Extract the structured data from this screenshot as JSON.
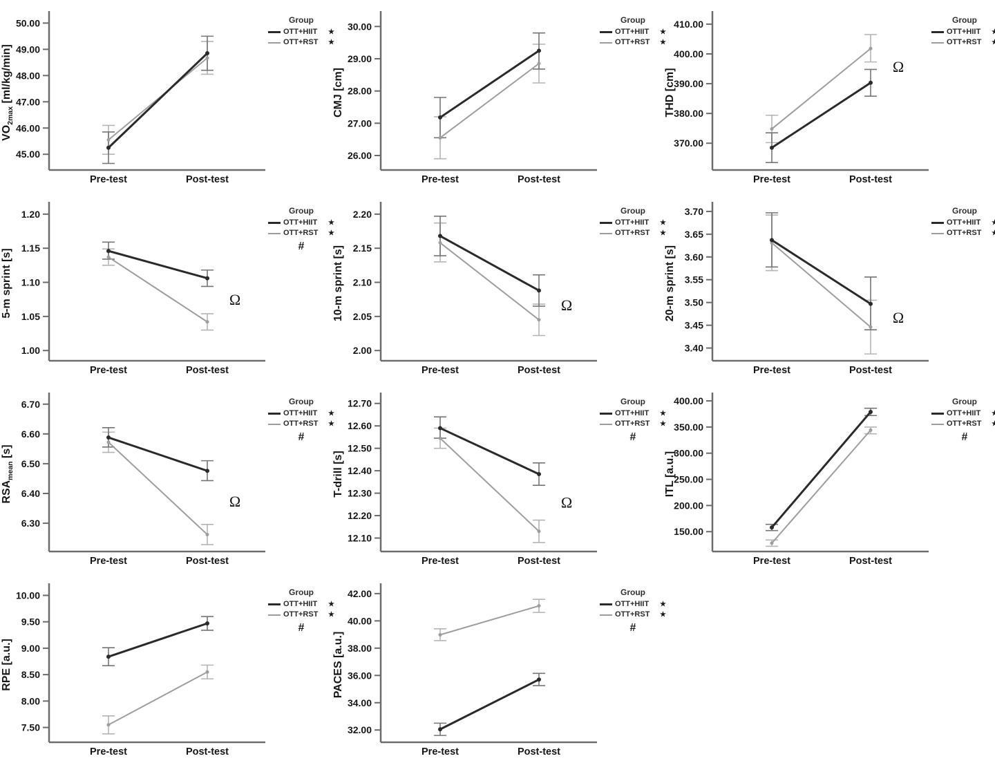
{
  "figure": {
    "background": "#ffffff",
    "rows": 4,
    "cols": 3
  },
  "colors": {
    "hiit_line": "#2a2a2a",
    "rst_line": "#9d9d9d",
    "hiit_error": "#747474",
    "rst_error": "#b4b4b4",
    "axis": "#6b6b6b",
    "text": "#161616"
  },
  "legend": {
    "title": "Group",
    "star": "★",
    "hash": "#"
  },
  "annotations": {
    "omega": "Ω"
  },
  "categories": [
    "Pre-test",
    "Post-test"
  ],
  "chart_data": [
    {
      "id": "vo2max",
      "type": "line",
      "ylabel": "VO2max [ml/kg/min]",
      "ylabel_parts": [
        {
          "text": "VO"
        },
        {
          "text": "2max",
          "sub": true
        },
        {
          "text": " [ml/kg/min]"
        }
      ],
      "categories": [
        "Pre-test",
        "Post-test"
      ],
      "yticks": [
        45,
        46,
        47,
        48,
        49,
        50
      ],
      "ytick_labels": [
        "45.00",
        "46.00",
        "47.00",
        "48.00",
        "49.00",
        "50.00"
      ],
      "ylim": [
        44.4,
        50.3
      ],
      "series": [
        {
          "name": "OTT+HIIT",
          "values": [
            45.25,
            48.85
          ],
          "err_low": [
            44.65,
            48.2
          ],
          "err_high": [
            45.85,
            49.5
          ],
          "significant": true
        },
        {
          "name": "OTT+RST",
          "values": [
            45.55,
            48.67
          ],
          "err_low": [
            45.0,
            48.05
          ],
          "err_high": [
            46.1,
            49.3
          ],
          "significant": true
        }
      ],
      "between_group_hash": false,
      "omega_y": null
    },
    {
      "id": "cmj",
      "type": "line",
      "ylabel": "CMJ [cm]",
      "ylabel_parts": [
        {
          "text": "CMJ [cm]"
        }
      ],
      "categories": [
        "Pre-test",
        "Post-test"
      ],
      "yticks": [
        26,
        27,
        28,
        29,
        30
      ],
      "ytick_labels": [
        "26.00",
        "27.00",
        "28.00",
        "29.00",
        "30.00"
      ],
      "ylim": [
        25.55,
        30.35
      ],
      "series": [
        {
          "name": "OTT+HIIT",
          "values": [
            27.18,
            29.25
          ],
          "err_low": [
            26.55,
            28.68
          ],
          "err_high": [
            27.8,
            29.8
          ],
          "significant": true
        },
        {
          "name": "OTT+RST",
          "values": [
            26.55,
            28.85
          ],
          "err_low": [
            25.9,
            28.25
          ],
          "err_high": [
            27.2,
            29.45
          ],
          "significant": true
        }
      ],
      "between_group_hash": false,
      "omega_y": null
    },
    {
      "id": "thd",
      "type": "line",
      "ylabel": "THD [cm]",
      "ylabel_parts": [
        {
          "text": "THD [cm]"
        }
      ],
      "categories": [
        "Pre-test",
        "Post-test"
      ],
      "yticks": [
        370,
        380,
        390,
        400,
        410
      ],
      "ytick_labels": [
        "370.00",
        "380.00",
        "390.00",
        "400.00",
        "410.00"
      ],
      "ylim": [
        361,
        413
      ],
      "series": [
        {
          "name": "OTT+HIIT",
          "values": [
            368.5,
            390.3
          ],
          "err_low": [
            363.5,
            385.8
          ],
          "err_high": [
            373.5,
            394.8
          ],
          "significant": true
        },
        {
          "name": "OTT+RST",
          "values": [
            374.8,
            401.8
          ],
          "err_low": [
            370.2,
            397.3
          ],
          "err_high": [
            379.4,
            406.5
          ],
          "significant": true
        }
      ],
      "between_group_hash": false,
      "omega_y": 395.8
    },
    {
      "id": "sprint5m",
      "type": "line",
      "ylabel": "5-m sprint [s]",
      "ylabel_parts": [
        {
          "text": "5-m sprint [s]"
        }
      ],
      "categories": [
        "Pre-test",
        "Post-test"
      ],
      "yticks": [
        1.0,
        1.05,
        1.1,
        1.15,
        1.2
      ],
      "ytick_labels": [
        "1.00",
        "1.05",
        "1.10",
        "1.15",
        "1.20"
      ],
      "ylim": [
        0.985,
        1.212
      ],
      "series": [
        {
          "name": "OTT+HIIT",
          "values": [
            1.146,
            1.106
          ],
          "err_low": [
            1.134,
            1.094
          ],
          "err_high": [
            1.159,
            1.118
          ],
          "significant": true
        },
        {
          "name": "OTT+RST",
          "values": [
            1.137,
            1.042
          ],
          "err_low": [
            1.125,
            1.03
          ],
          "err_high": [
            1.149,
            1.054
          ],
          "significant": true
        }
      ],
      "between_group_hash": true,
      "omega_y": 1.075
    },
    {
      "id": "sprint10m",
      "type": "line",
      "ylabel": "10-m sprint [s]",
      "ylabel_parts": [
        {
          "text": "10-m sprint [s]"
        }
      ],
      "categories": [
        "Pre-test",
        "Post-test"
      ],
      "yticks": [
        2.0,
        2.05,
        2.1,
        2.15,
        2.2
      ],
      "ytick_labels": [
        "2.00",
        "2.05",
        "2.10",
        "2.15",
        "2.20"
      ],
      "ylim": [
        1.985,
        2.212
      ],
      "series": [
        {
          "name": "OTT+HIIT",
          "values": [
            2.168,
            2.088
          ],
          "err_low": [
            2.139,
            2.065
          ],
          "err_high": [
            2.197,
            2.111
          ],
          "significant": true
        },
        {
          "name": "OTT+RST",
          "values": [
            2.158,
            2.045
          ],
          "err_low": [
            2.13,
            2.022
          ],
          "err_high": [
            2.187,
            2.068
          ],
          "significant": true
        }
      ],
      "between_group_hash": false,
      "omega_y": 2.067
    },
    {
      "id": "sprint20m",
      "type": "line",
      "ylabel": "20-m sprint [s]",
      "ylabel_parts": [
        {
          "text": "20-m sprint [s]"
        }
      ],
      "categories": [
        "Pre-test",
        "Post-test"
      ],
      "yticks": [
        3.4,
        3.45,
        3.5,
        3.55,
        3.6,
        3.65,
        3.7
      ],
      "ytick_labels": [
        "3.40",
        "3.45",
        "3.50",
        "3.55",
        "3.60",
        "3.65",
        "3.70"
      ],
      "ylim": [
        3.372,
        3.712
      ],
      "series": [
        {
          "name": "OTT+HIIT",
          "values": [
            3.637,
            3.497
          ],
          "err_low": [
            3.578,
            3.44
          ],
          "err_high": [
            3.697,
            3.556
          ],
          "significant": true
        },
        {
          "name": "OTT+RST",
          "values": [
            3.631,
            3.446
          ],
          "err_low": [
            3.57,
            3.387
          ],
          "err_high": [
            3.692,
            3.505
          ],
          "significant": true
        }
      ],
      "between_group_hash": false,
      "omega_y": 3.468
    },
    {
      "id": "rsa_mean",
      "type": "line",
      "ylabel": "RSAmean [s]",
      "ylabel_parts": [
        {
          "text": "RSA"
        },
        {
          "text": "mean",
          "sub": true
        },
        {
          "text": " [s]"
        }
      ],
      "categories": [
        "Pre-test",
        "Post-test"
      ],
      "yticks": [
        6.3,
        6.4,
        6.5,
        6.6,
        6.7
      ],
      "ytick_labels": [
        "6.30",
        "6.40",
        "6.50",
        "6.60",
        "6.70"
      ],
      "ylim": [
        6.205,
        6.725
      ],
      "series": [
        {
          "name": "OTT+HIIT",
          "values": [
            6.588,
            6.476
          ],
          "err_low": [
            6.556,
            6.443
          ],
          "err_high": [
            6.621,
            6.51
          ],
          "significant": true
        },
        {
          "name": "OTT+RST",
          "values": [
            6.572,
            6.262
          ],
          "err_low": [
            6.538,
            6.228
          ],
          "err_high": [
            6.606,
            6.296
          ],
          "significant": true
        }
      ],
      "between_group_hash": true,
      "omega_y": 6.375
    },
    {
      "id": "t_drill",
      "type": "line",
      "ylabel": "T-drill [s]",
      "ylabel_parts": [
        {
          "text": "T-drill [s]"
        }
      ],
      "categories": [
        "Pre-test",
        "Post-test"
      ],
      "yticks": [
        12.1,
        12.2,
        12.3,
        12.4,
        12.5,
        12.6,
        12.7
      ],
      "ytick_labels": [
        "12.10",
        "12.20",
        "12.30",
        "12.40",
        "12.50",
        "12.60",
        "12.70"
      ],
      "ylim": [
        12.04,
        12.73
      ],
      "series": [
        {
          "name": "OTT+HIIT",
          "values": [
            12.59,
            12.385
          ],
          "err_low": [
            12.545,
            12.335
          ],
          "err_high": [
            12.64,
            12.435
          ],
          "significant": true
        },
        {
          "name": "OTT+RST",
          "values": [
            12.545,
            12.13
          ],
          "err_low": [
            12.5,
            12.08
          ],
          "err_high": [
            12.59,
            12.18
          ],
          "significant": true
        }
      ],
      "between_group_hash": true,
      "omega_y": 12.26
    },
    {
      "id": "itl",
      "type": "line",
      "ylabel": "ITL [a.u.]",
      "ylabel_parts": [
        {
          "text": "ITL [a.u.]"
        }
      ],
      "categories": [
        "Pre-test",
        "Post-test"
      ],
      "yticks": [
        150,
        200,
        250,
        300,
        350,
        400
      ],
      "ytick_labels": [
        "150.00",
        "200.00",
        "250.00",
        "300.00",
        "350.00",
        "400.00"
      ],
      "ylim": [
        112,
        408
      ],
      "series": [
        {
          "name": "OTT+HIIT",
          "values": [
            158,
            379
          ],
          "err_low": [
            152,
            372
          ],
          "err_high": [
            164,
            386
          ],
          "significant": true
        },
        {
          "name": "OTT+RST",
          "values": [
            128,
            344
          ],
          "err_low": [
            122,
            337
          ],
          "err_high": [
            134,
            350
          ],
          "significant": true
        }
      ],
      "between_group_hash": true,
      "omega_y": null
    },
    {
      "id": "rpe",
      "type": "line",
      "ylabel": "RPE [a.u.]",
      "ylabel_parts": [
        {
          "text": "RPE [a.u.]"
        }
      ],
      "categories": [
        "Pre-test",
        "Post-test"
      ],
      "yticks": [
        7.5,
        8.0,
        8.5,
        9.0,
        9.5,
        10.0
      ],
      "ytick_labels": [
        "7.50",
        "8.00",
        "8.50",
        "9.00",
        "9.50",
        "10.00"
      ],
      "ylim": [
        7.22,
        10.15
      ],
      "series": [
        {
          "name": "OTT+HIIT",
          "values": [
            8.84,
            9.47
          ],
          "err_low": [
            8.67,
            9.34
          ],
          "err_high": [
            9.01,
            9.6
          ],
          "significant": true
        },
        {
          "name": "OTT+RST",
          "values": [
            7.55,
            8.55
          ],
          "err_low": [
            7.38,
            8.42
          ],
          "err_high": [
            7.72,
            8.68
          ],
          "significant": true
        }
      ],
      "between_group_hash": true,
      "omega_y": null
    },
    {
      "id": "paces",
      "type": "line",
      "ylabel": "PACES [a.u.]",
      "ylabel_parts": [
        {
          "text": "PACES [a.u.]"
        }
      ],
      "categories": [
        "Pre-test",
        "Post-test"
      ],
      "yticks": [
        32,
        34,
        36,
        38,
        40,
        42
      ],
      "ytick_labels": [
        "32.00",
        "34.00",
        "36.00",
        "38.00",
        "40.00",
        "42.00"
      ],
      "ylim": [
        31.1,
        42.45
      ],
      "series": [
        {
          "name": "OTT+HIIT",
          "values": [
            32.05,
            35.7
          ],
          "err_low": [
            31.6,
            35.25
          ],
          "err_high": [
            32.5,
            36.15
          ],
          "significant": true
        },
        {
          "name": "OTT+RST",
          "values": [
            38.98,
            41.1
          ],
          "err_low": [
            38.55,
            40.62
          ],
          "err_high": [
            39.42,
            41.58
          ],
          "significant": true
        }
      ],
      "between_group_hash": true,
      "omega_y": null
    }
  ]
}
